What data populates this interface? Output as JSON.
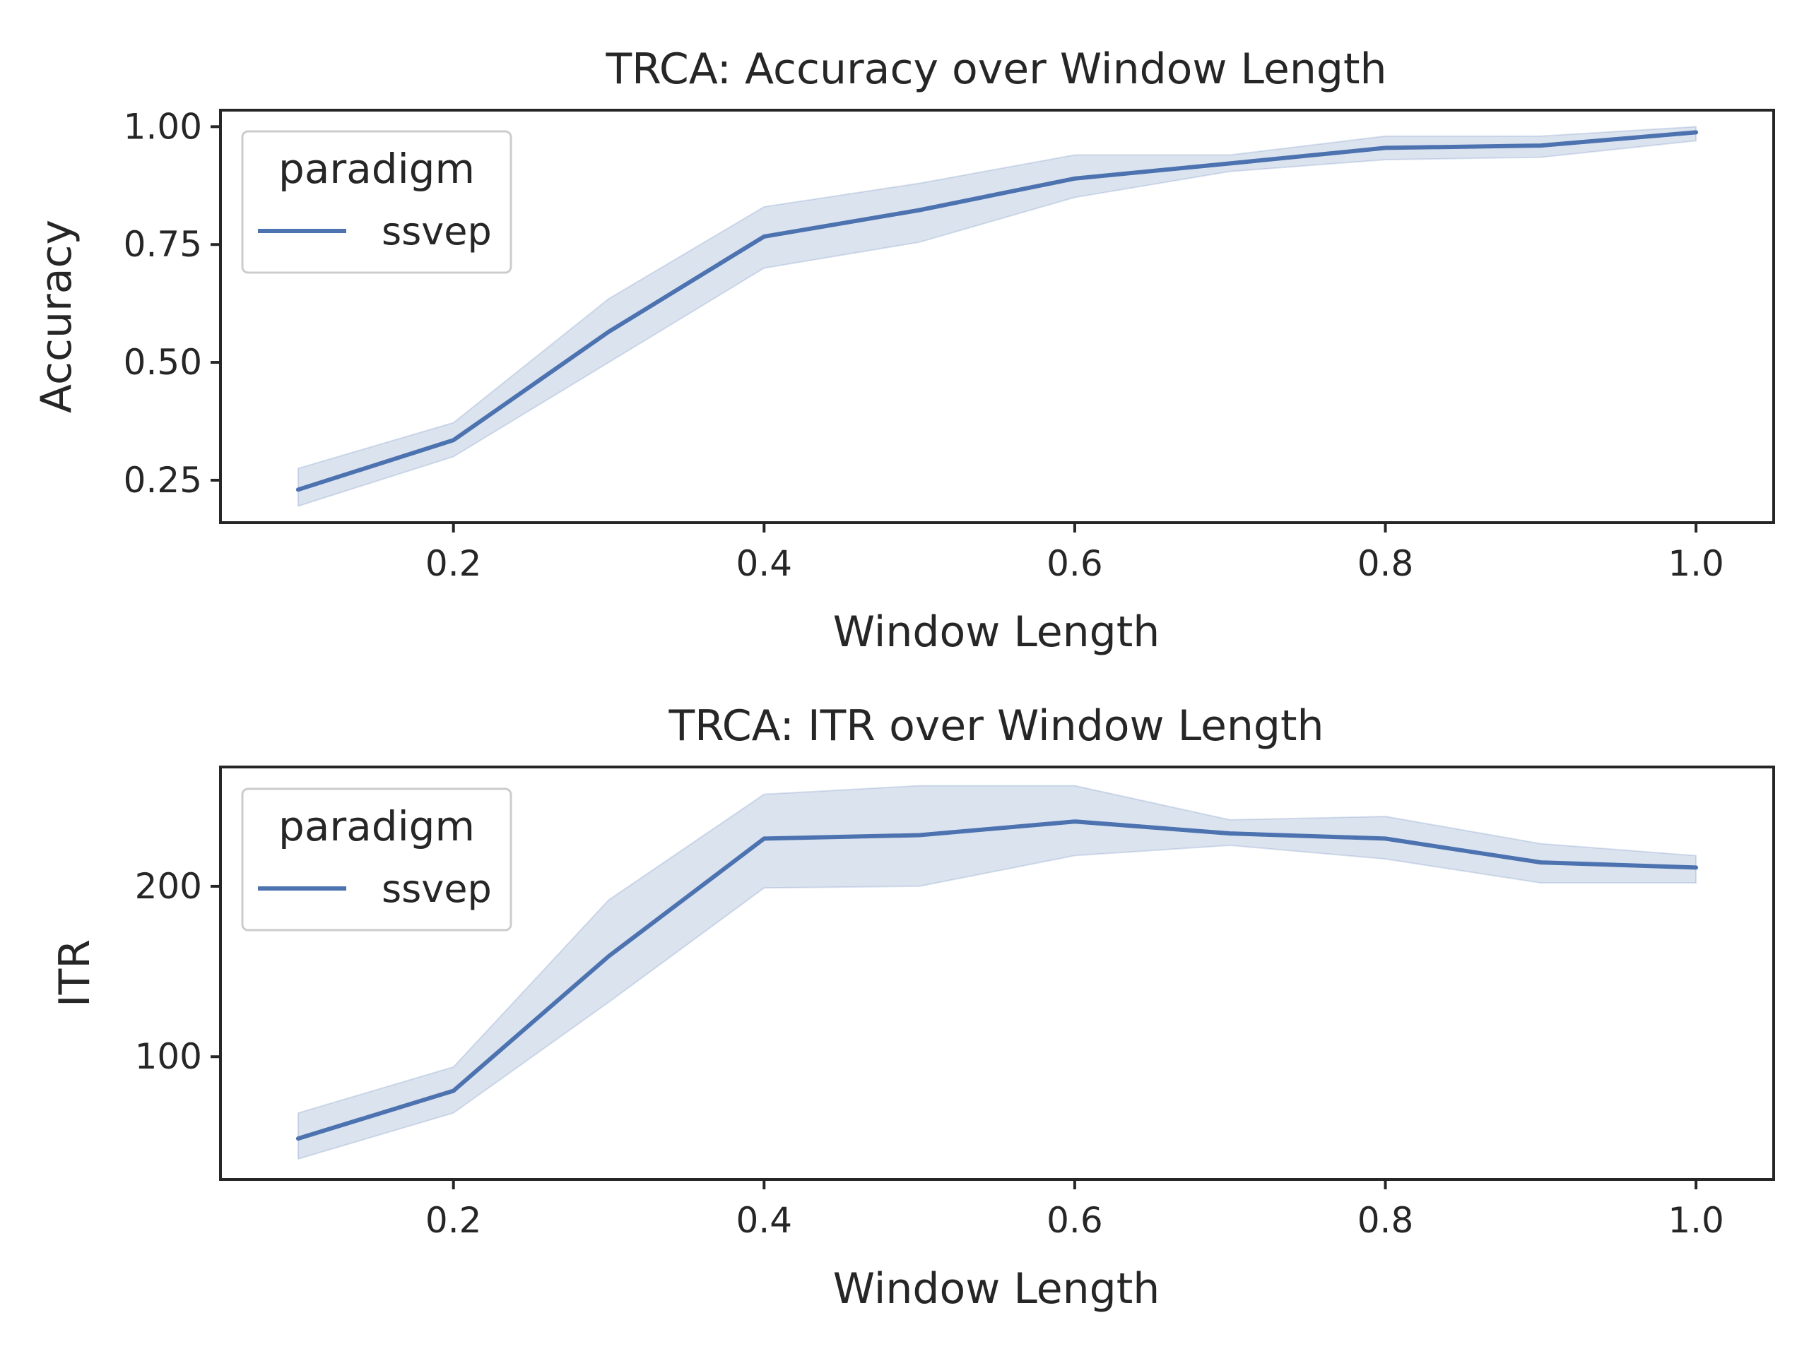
{
  "chart_data": [
    {
      "type": "line",
      "title": "TRCA: Accuracy over Window Length",
      "xlabel": "Window Length",
      "ylabel": "Accuracy",
      "xlim": [
        0.05,
        1.05
      ],
      "ylim": [
        0.16,
        1.035
      ],
      "xticks": [
        "0.2",
        "0.4",
        "0.6",
        "0.8",
        "1.0"
      ],
      "xtick_values": [
        0.2,
        0.4,
        0.6,
        0.8,
        1.0
      ],
      "yticks": [
        "0.25",
        "0.50",
        "0.75",
        "1.00"
      ],
      "ytick_values": [
        0.25,
        0.5,
        0.75,
        1.0
      ],
      "grid": false,
      "legend": {
        "title": "paradigm",
        "placement": "upper-left"
      },
      "series": [
        {
          "name": "ssvep",
          "color": "#4c72b0",
          "x": [
            0.1,
            0.2,
            0.3,
            0.4,
            0.5,
            0.6,
            0.7,
            0.8,
            0.9,
            1.0
          ],
          "values": [
            0.23,
            0.335,
            0.565,
            0.767,
            0.823,
            0.89,
            0.922,
            0.955,
            0.96,
            0.988
          ],
          "ci_lower": [
            0.195,
            0.3,
            0.5,
            0.7,
            0.755,
            0.85,
            0.905,
            0.93,
            0.935,
            0.97
          ],
          "ci_upper": [
            0.275,
            0.372,
            0.635,
            0.83,
            0.88,
            0.94,
            0.94,
            0.98,
            0.98,
            1.0
          ]
        }
      ]
    },
    {
      "type": "line",
      "title": "TRCA: ITR over Window Length",
      "xlabel": "Window Length",
      "ylabel": "ITR",
      "xlim": [
        0.05,
        1.05
      ],
      "ylim": [
        28,
        270
      ],
      "xticks": [
        "0.2",
        "0.4",
        "0.6",
        "0.8",
        "1.0"
      ],
      "xtick_values": [
        0.2,
        0.4,
        0.6,
        0.8,
        1.0
      ],
      "yticks": [
        "100",
        "200"
      ],
      "ytick_values": [
        100,
        200
      ],
      "grid": false,
      "legend": {
        "title": "paradigm",
        "placement": "upper-left"
      },
      "series": [
        {
          "name": "ssvep",
          "color": "#4c72b0",
          "x": [
            0.1,
            0.2,
            0.3,
            0.4,
            0.5,
            0.6,
            0.7,
            0.8,
            0.9,
            1.0
          ],
          "values": [
            52,
            80,
            159,
            228,
            230,
            238,
            231,
            228,
            214,
            211
          ],
          "ci_lower": [
            40,
            67,
            132,
            199,
            200,
            218,
            224,
            216,
            202,
            202
          ],
          "ci_upper": [
            67,
            94,
            192,
            254,
            259,
            259,
            239,
            241,
            225,
            218
          ]
        }
      ]
    }
  ]
}
